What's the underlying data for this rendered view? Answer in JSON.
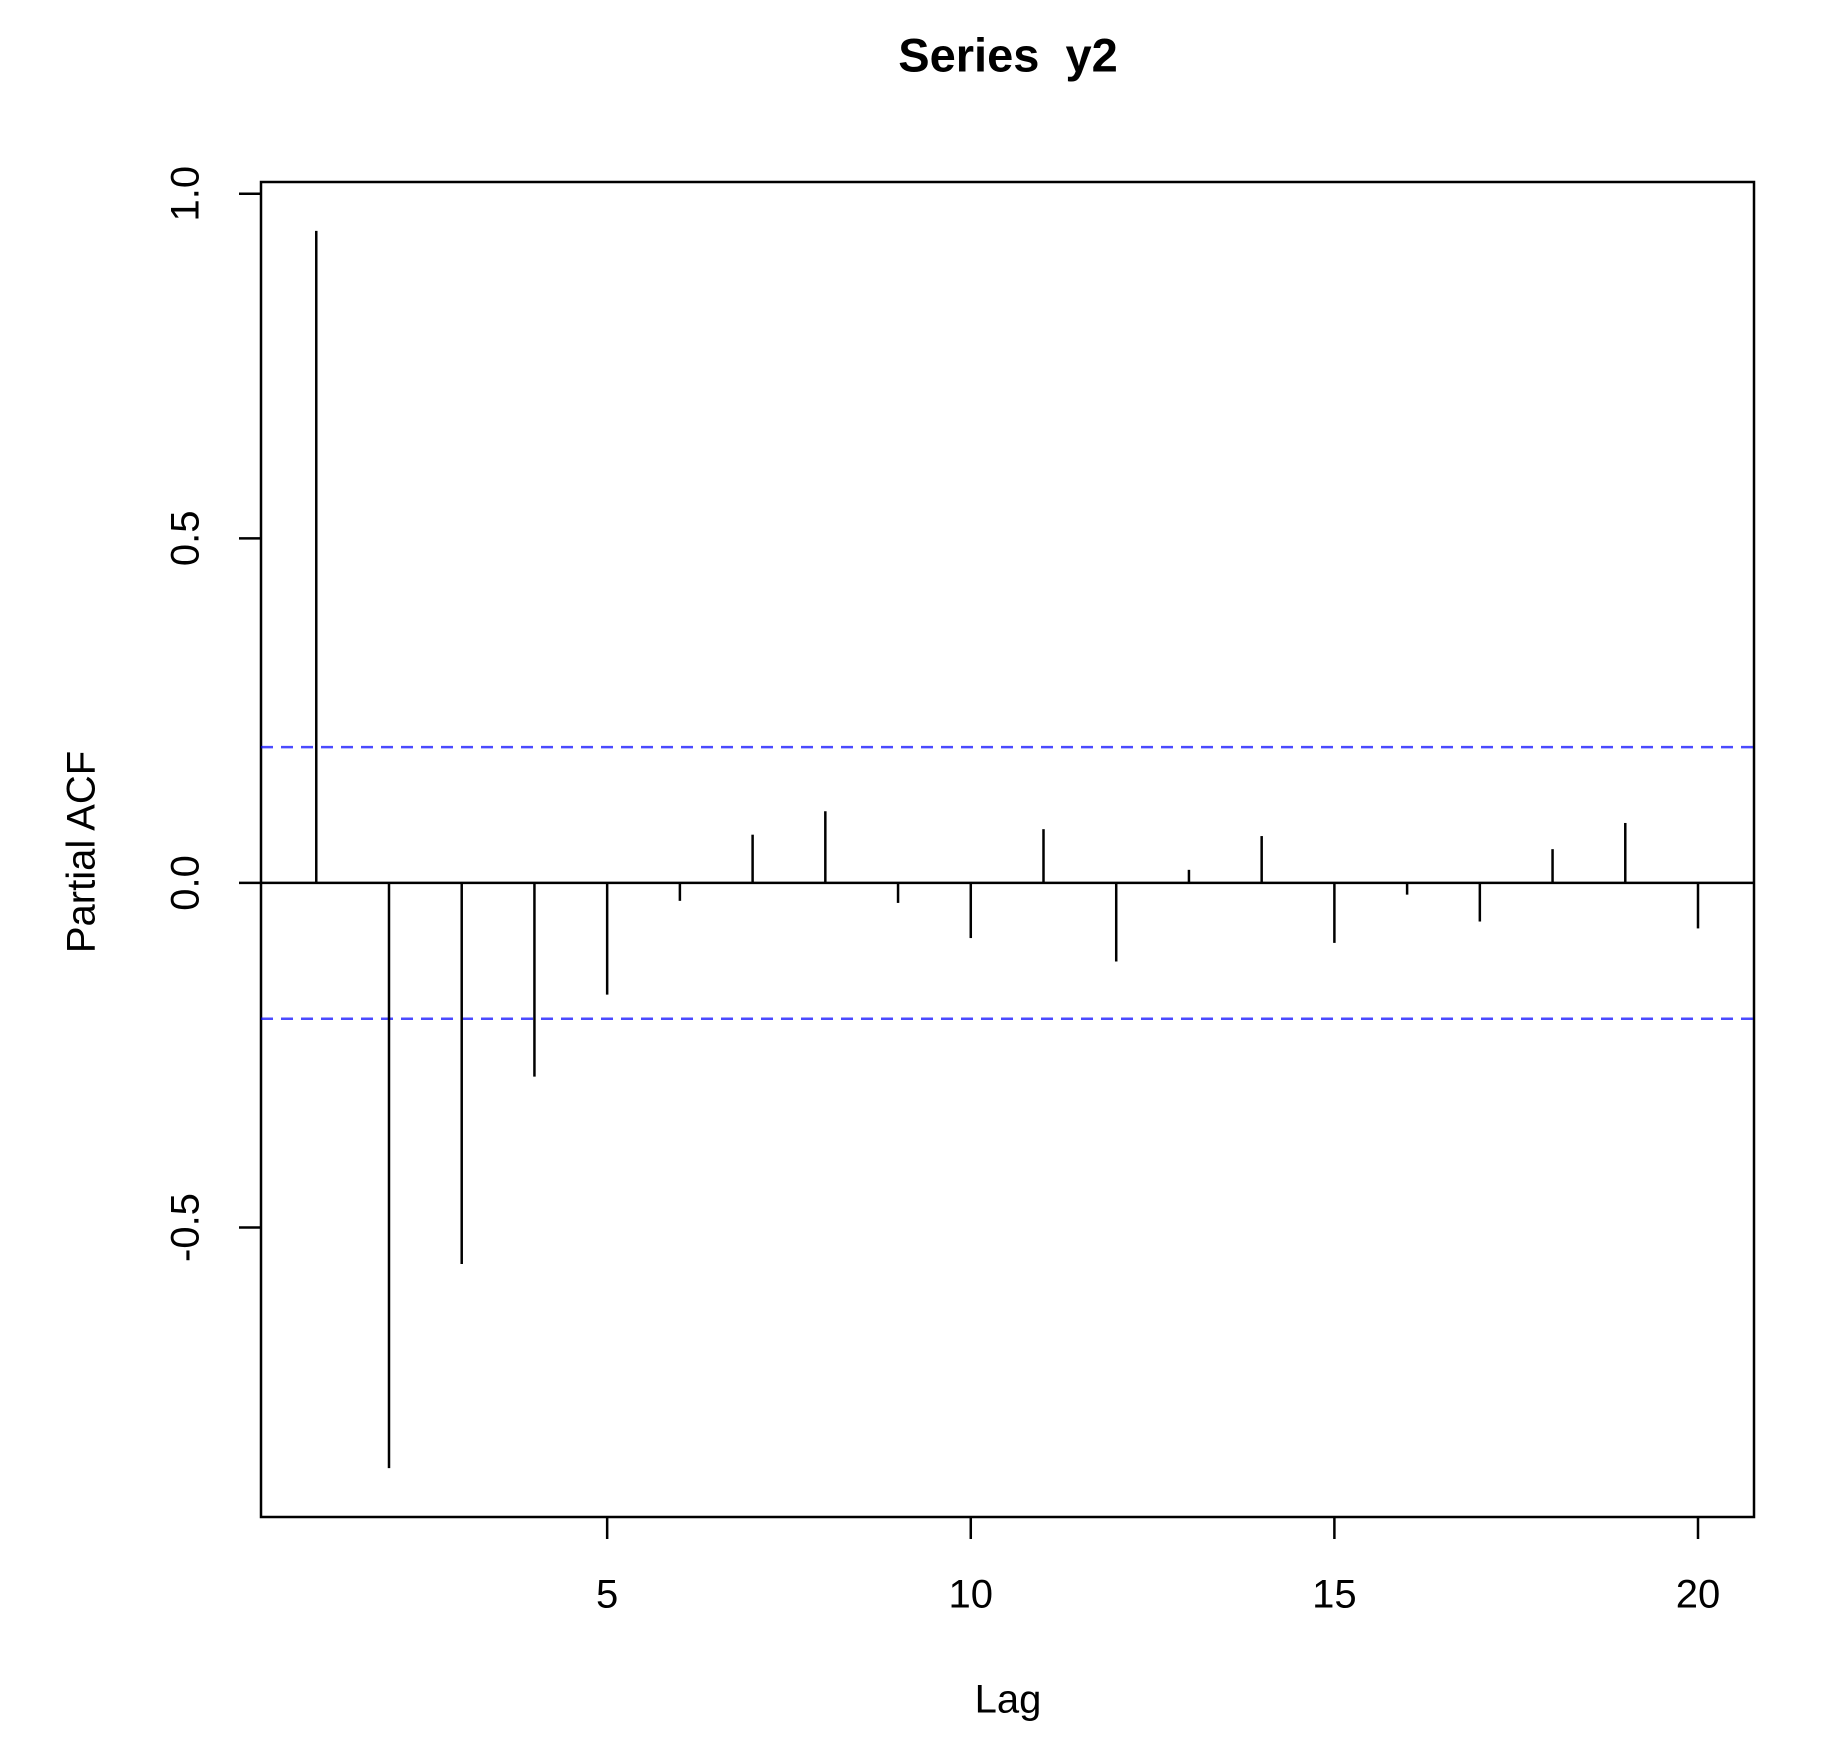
{
  "chart_data": {
    "type": "pacf",
    "title": "Series  y2",
    "x_label": "Lag",
    "y_label": "Partial ACF",
    "x": [
      1,
      2,
      3,
      4,
      5,
      6,
      7,
      8,
      9,
      10,
      11,
      12,
      13,
      14,
      15,
      16,
      17,
      18,
      19,
      20
    ],
    "values": [
      0.946,
      -0.849,
      -0.553,
      -0.281,
      -0.162,
      -0.026,
      0.07,
      0.104,
      -0.029,
      -0.08,
      0.078,
      -0.114,
      0.019,
      0.068,
      -0.087,
      -0.017,
      -0.056,
      0.049,
      0.087,
      -0.066
    ],
    "color": "#000000",
    "confidence_bounds": [
      0.197,
      -0.197
    ],
    "confidence_color": "#0000ff",
    "xlim": [
      0.24,
      20.77
    ],
    "xticks": [
      5,
      10,
      15,
      20
    ],
    "ylim": [
      -0.92,
      1.017
    ],
    "yticks": [
      -0.5,
      {
        "value": 0,
        "label": "0.0"
      },
      0.5,
      {
        "value": 1,
        "label": "1.0"
      }
    ]
  }
}
